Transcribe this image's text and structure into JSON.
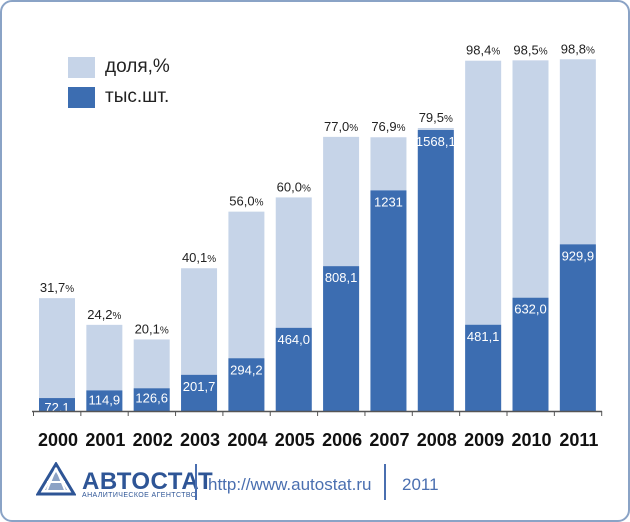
{
  "chart_data": {
    "type": "bar",
    "categories": [
      "2000",
      "2001",
      "2002",
      "2003",
      "2004",
      "2005",
      "2006",
      "2007",
      "2008",
      "2009",
      "2010",
      "2011"
    ],
    "series": [
      {
        "name": "доля,%",
        "values": [
          31.7,
          24.2,
          20.1,
          40.1,
          56.0,
          60.0,
          77.0,
          76.9,
          79.5,
          98.4,
          98.5,
          98.8
        ],
        "labels": [
          "31,7",
          "24,2",
          "20,1",
          "40,1",
          "56,0",
          "60,0",
          "77,0",
          "76,9",
          "79,5",
          "98,4",
          "98,5",
          "98,8"
        ],
        "suffix": "%"
      },
      {
        "name": "тыс.шт.",
        "values": [
          72.1,
          114.9,
          126.6,
          201.7,
          294.2,
          464.0,
          808.1,
          1231,
          1568.1,
          481.1,
          632.0,
          929.9
        ],
        "labels": [
          "72,1",
          "114,9",
          "126,6",
          "201,7",
          "294,2",
          "464,0",
          "808,1",
          "1231",
          "1568,1",
          "481,1",
          "632,0",
          "929,9"
        ]
      }
    ],
    "colors": {
      "share": "#c6d4e8",
      "units": "#3c6db1",
      "axis": "#555555"
    },
    "ylim_share": [
      0,
      100
    ],
    "ylim_units": [
      0,
      1640
    ]
  },
  "legend": {
    "share_label": "доля,%",
    "units_label": "тыс.шт."
  },
  "footer": {
    "logo_main": "АВТОСТАТ",
    "logo_sub": "АНАЛИТИЧЕСКОЕ АГЕНТСТВО",
    "url": "http://www.autostat.ru",
    "year": "2011"
  }
}
